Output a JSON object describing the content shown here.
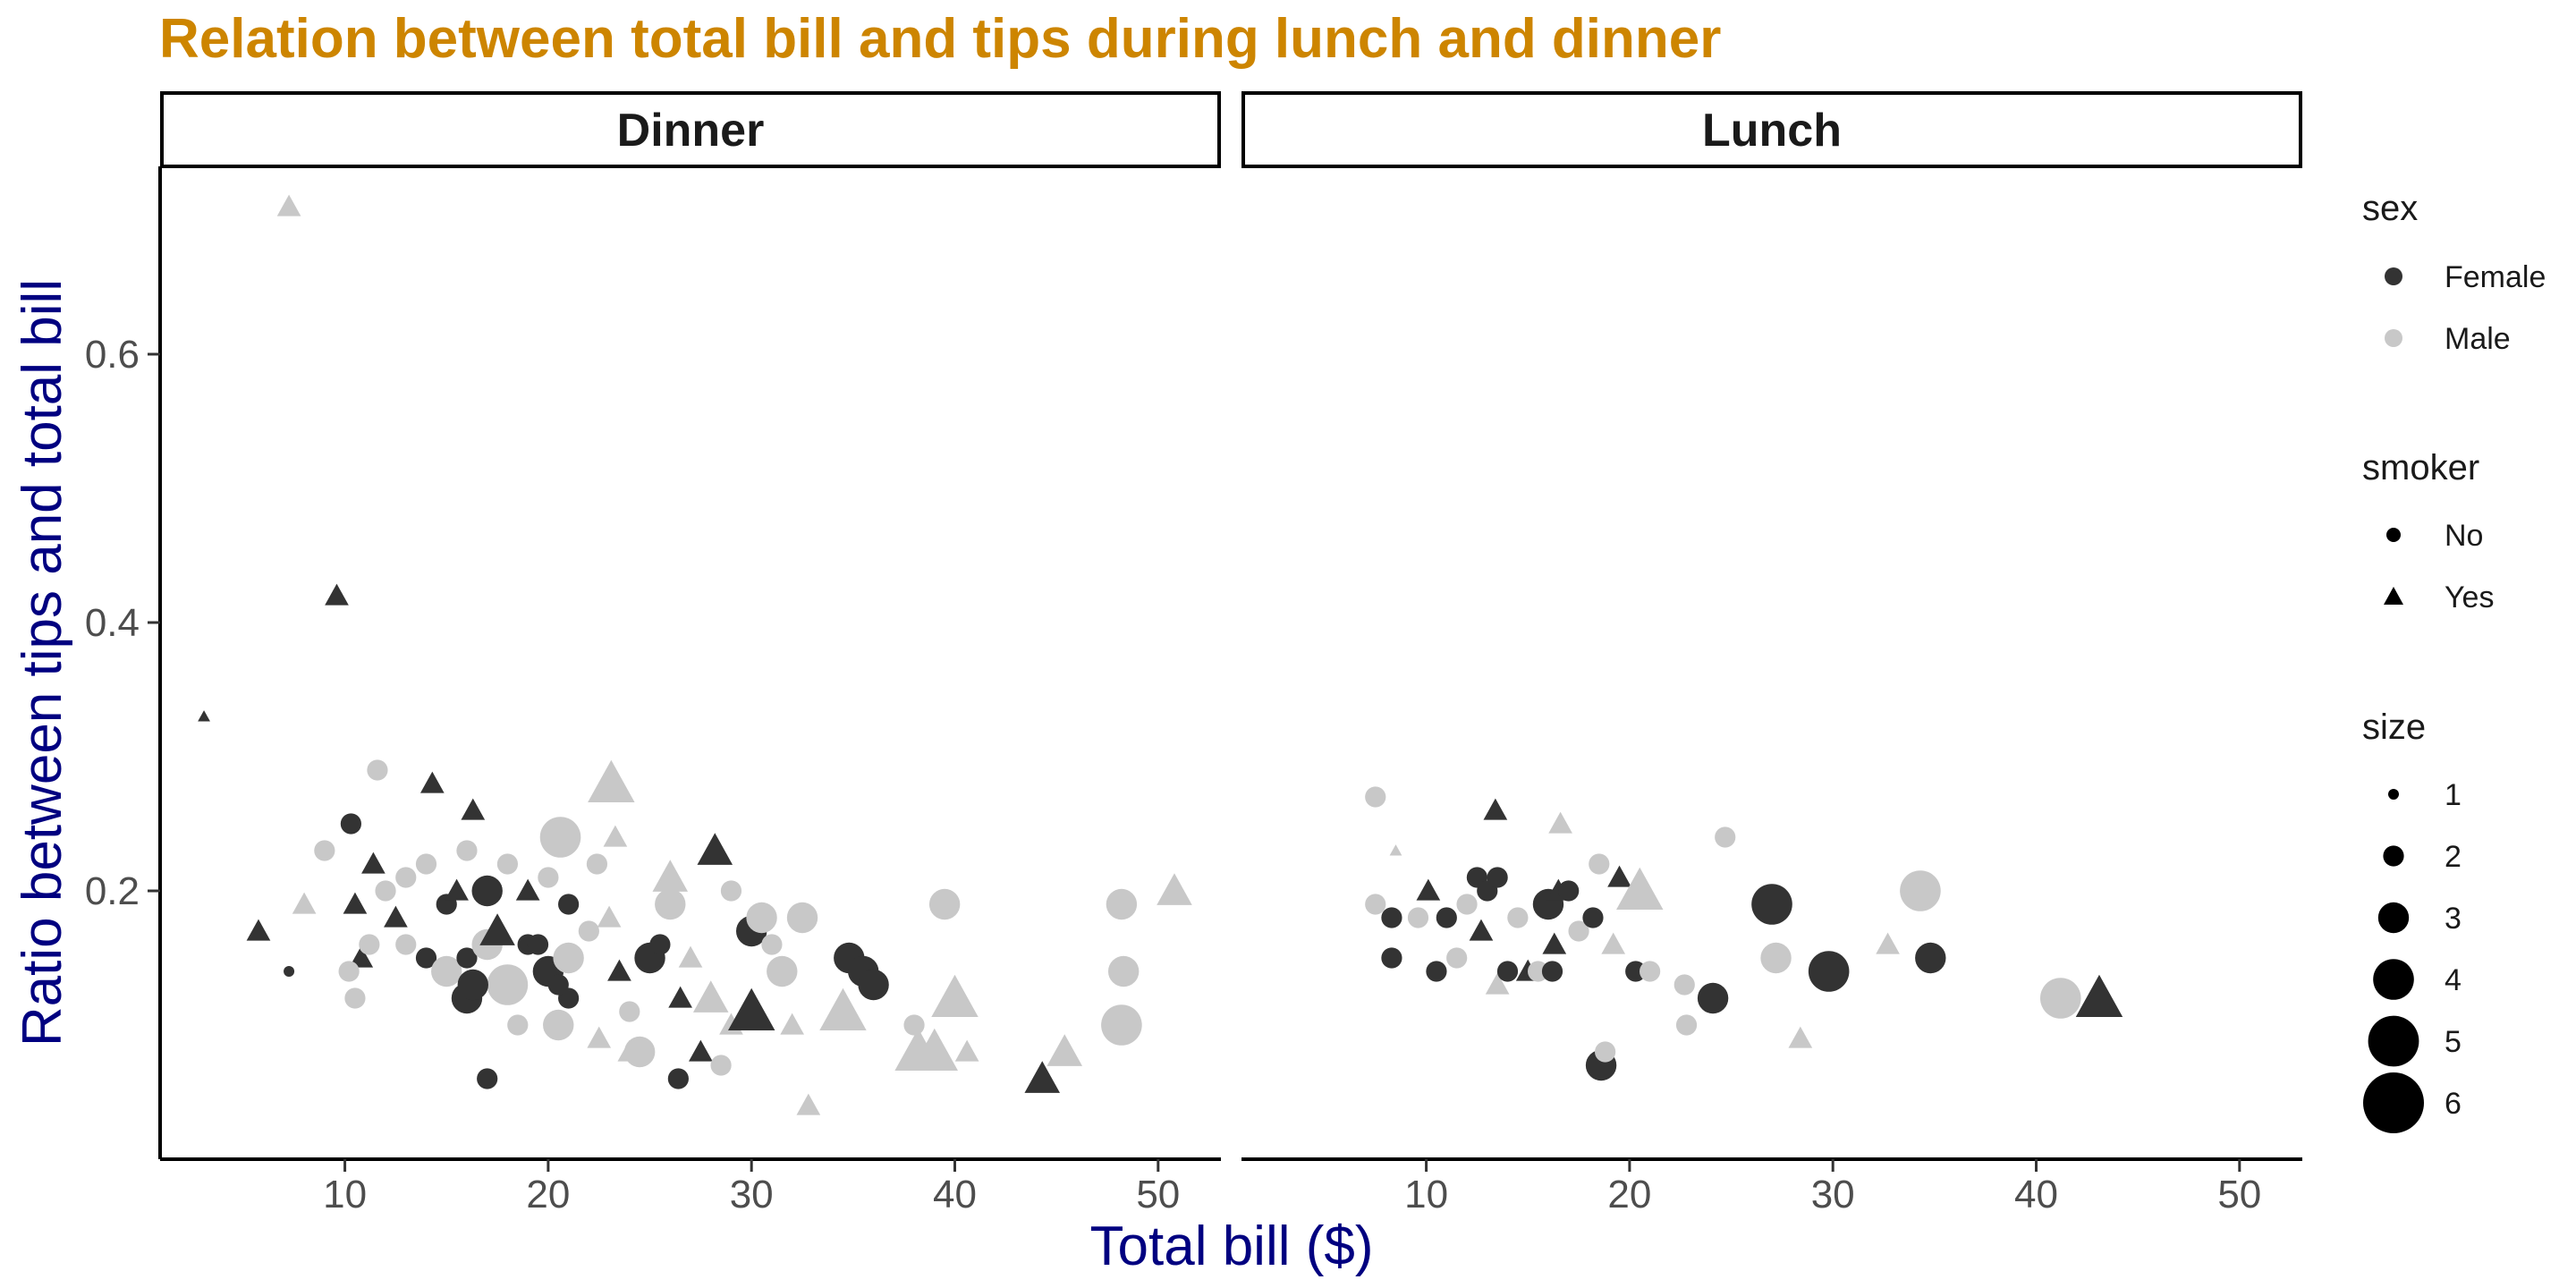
{
  "title": "Relation between total bill and tips during lunch and dinner",
  "colors": {
    "Female": "#333333",
    "Male": "#c8c8c8",
    "title": "#CD8500",
    "axis_title": "#000080"
  },
  "chart_data": {
    "type": "scatter",
    "title": "Relation between total bill and tips during lunch and dinner",
    "xlabel": "Total bill ($)",
    "ylabel": "Ratio between tips and total bill",
    "xlim": [
      1,
      53
    ],
    "ylim": [
      0,
      0.74
    ],
    "x_ticks": [
      10,
      20,
      30,
      40,
      50
    ],
    "y_ticks": [
      0.2,
      0.4,
      0.6
    ],
    "grid": false,
    "facets": [
      "Dinner",
      "Lunch"
    ],
    "legend_position": "right",
    "legends": {
      "sex": {
        "title": "sex",
        "entries": [
          "Female",
          "Male"
        ]
      },
      "smoker": {
        "title": "smoker",
        "entries": [
          "No",
          "Yes"
        ]
      },
      "size": {
        "title": "size",
        "entries": [
          1,
          2,
          3,
          4,
          5,
          6
        ]
      }
    },
    "series": [
      {
        "facet": "Dinner",
        "points": [
          [
            7.25,
            0.71,
            "Male",
            "Yes",
            2
          ],
          [
            3.07,
            0.33,
            "Female",
            "Yes",
            1
          ],
          [
            9.6,
            0.42,
            "Female",
            "Yes",
            2
          ],
          [
            5.75,
            0.17,
            "Female",
            "Yes",
            2
          ],
          [
            7.25,
            0.14,
            "Female",
            "No",
            1
          ],
          [
            8.0,
            0.19,
            "Male",
            "Yes",
            2
          ],
          [
            9.0,
            0.23,
            "Male",
            "No",
            2
          ],
          [
            10.3,
            0.25,
            "Female",
            "No",
            2
          ],
          [
            11.6,
            0.29,
            "Male",
            "No",
            2
          ],
          [
            14.3,
            0.28,
            "Female",
            "Yes",
            2
          ],
          [
            16.3,
            0.26,
            "Female",
            "Yes",
            2
          ],
          [
            23.1,
            0.28,
            "Male",
            "Yes",
            4
          ],
          [
            23.3,
            0.24,
            "Male",
            "Yes",
            2
          ],
          [
            28.2,
            0.23,
            "Female",
            "Yes",
            3
          ],
          [
            20.6,
            0.24,
            "Male",
            "No",
            4
          ],
          [
            22.4,
            0.22,
            "Male",
            "No",
            2
          ],
          [
            11.4,
            0.22,
            "Female",
            "Yes",
            2
          ],
          [
            12.0,
            0.2,
            "Male",
            "No",
            2
          ],
          [
            13.0,
            0.21,
            "Male",
            "No",
            2
          ],
          [
            14.0,
            0.22,
            "Male",
            "No",
            2
          ],
          [
            15.0,
            0.19,
            "Female",
            "No",
            2
          ],
          [
            16.0,
            0.23,
            "Male",
            "No",
            2
          ],
          [
            17.0,
            0.2,
            "Female",
            "No",
            3
          ],
          [
            18.0,
            0.22,
            "Male",
            "No",
            2
          ],
          [
            19.0,
            0.2,
            "Female",
            "Yes",
            2
          ],
          [
            20.0,
            0.21,
            "Male",
            "No",
            2
          ],
          [
            21.0,
            0.19,
            "Female",
            "No",
            2
          ],
          [
            15.5,
            0.2,
            "Female",
            "Yes",
            2
          ],
          [
            10.5,
            0.19,
            "Female",
            "Yes",
            2
          ],
          [
            10.8,
            0.15,
            "Female",
            "Yes",
            2
          ],
          [
            10.2,
            0.14,
            "Male",
            "No",
            2
          ],
          [
            10.5,
            0.12,
            "Male",
            "No",
            2
          ],
          [
            11.2,
            0.16,
            "Male",
            "No",
            2
          ],
          [
            12.5,
            0.18,
            "Female",
            "Yes",
            2
          ],
          [
            13.0,
            0.16,
            "Male",
            "No",
            2
          ],
          [
            14.0,
            0.15,
            "Female",
            "No",
            2
          ],
          [
            15.0,
            0.14,
            "Male",
            "No",
            3
          ],
          [
            16.0,
            0.15,
            "Female",
            "No",
            2
          ],
          [
            16.0,
            0.12,
            "Female",
            "No",
            3
          ],
          [
            17.0,
            0.16,
            "Male",
            "No",
            3
          ],
          [
            18.0,
            0.13,
            "Male",
            "No",
            4
          ],
          [
            18.5,
            0.1,
            "Male",
            "No",
            2
          ],
          [
            19.0,
            0.16,
            "Female",
            "No",
            2
          ],
          [
            20.0,
            0.14,
            "Female",
            "No",
            3
          ],
          [
            20.5,
            0.1,
            "Male",
            "No",
            3
          ],
          [
            21.0,
            0.12,
            "Female",
            "No",
            2
          ],
          [
            21.0,
            0.15,
            "Male",
            "No",
            3
          ],
          [
            22.0,
            0.17,
            "Male",
            "No",
            2
          ],
          [
            22.5,
            0.09,
            "Male",
            "Yes",
            2
          ],
          [
            23.0,
            0.18,
            "Male",
            "Yes",
            2
          ],
          [
            23.5,
            0.14,
            "Female",
            "Yes",
            2
          ],
          [
            24.0,
            0.08,
            "Male",
            "Yes",
            2
          ],
          [
            24.0,
            0.11,
            "Male",
            "No",
            2
          ],
          [
            24.5,
            0.08,
            "Male",
            "No",
            3
          ],
          [
            25.0,
            0.15,
            "Female",
            "No",
            3
          ],
          [
            25.5,
            0.16,
            "Female",
            "No",
            2
          ],
          [
            26.0,
            0.19,
            "Male",
            "No",
            3
          ],
          [
            26.0,
            0.21,
            "Male",
            "Yes",
            3
          ],
          [
            26.5,
            0.12,
            "Female",
            "Yes",
            2
          ],
          [
            26.4,
            0.06,
            "Female",
            "No",
            2
          ],
          [
            27.0,
            0.15,
            "Male",
            "Yes",
            2
          ],
          [
            27.5,
            0.08,
            "Female",
            "Yes",
            2
          ],
          [
            28.0,
            0.12,
            "Male",
            "Yes",
            3
          ],
          [
            28.5,
            0.07,
            "Male",
            "No",
            2
          ],
          [
            29.0,
            0.1,
            "Male",
            "Yes",
            2
          ],
          [
            29.0,
            0.2,
            "Male",
            "No",
            2
          ],
          [
            30.0,
            0.17,
            "Female",
            "No",
            3
          ],
          [
            30.0,
            0.11,
            "Female",
            "Yes",
            4
          ],
          [
            30.5,
            0.18,
            "Male",
            "No",
            3
          ],
          [
            31.0,
            0.16,
            "Male",
            "No",
            2
          ],
          [
            31.5,
            0.14,
            "Male",
            "No",
            3
          ],
          [
            32.0,
            0.1,
            "Male",
            "Yes",
            2
          ],
          [
            32.5,
            0.18,
            "Male",
            "No",
            3
          ],
          [
            32.8,
            0.04,
            "Male",
            "Yes",
            2
          ],
          [
            34.5,
            0.11,
            "Male",
            "Yes",
            4
          ],
          [
            34.8,
            0.15,
            "Female",
            "No",
            3
          ],
          [
            35.5,
            0.14,
            "Female",
            "No",
            3
          ],
          [
            36.0,
            0.13,
            "Female",
            "No",
            3
          ],
          [
            38.0,
            0.1,
            "Male",
            "No",
            2
          ],
          [
            38.2,
            0.08,
            "Male",
            "Yes",
            4
          ],
          [
            39.0,
            0.08,
            "Male",
            "Yes",
            4
          ],
          [
            39.5,
            0.19,
            "Male",
            "No",
            3
          ],
          [
            40.0,
            0.12,
            "Male",
            "Yes",
            4
          ],
          [
            40.6,
            0.08,
            "Male",
            "Yes",
            2
          ],
          [
            44.3,
            0.06,
            "Female",
            "Yes",
            3
          ],
          [
            45.4,
            0.08,
            "Male",
            "Yes",
            3
          ],
          [
            48.2,
            0.19,
            "Male",
            "No",
            3
          ],
          [
            48.3,
            0.14,
            "Male",
            "No",
            3
          ],
          [
            48.2,
            0.1,
            "Male",
            "No",
            4
          ],
          [
            50.8,
            0.2,
            "Male",
            "Yes",
            3
          ],
          [
            17.0,
            0.06,
            "Female",
            "No",
            2
          ],
          [
            17.5,
            0.17,
            "Female",
            "Yes",
            3
          ],
          [
            19.5,
            0.16,
            "Female",
            "No",
            2
          ],
          [
            20.5,
            0.13,
            "Female",
            "No",
            2
          ],
          [
            16.3,
            0.13,
            "Female",
            "No",
            3
          ]
        ]
      },
      {
        "facet": "Lunch",
        "points": [
          [
            7.5,
            0.27,
            "Male",
            "No",
            2
          ],
          [
            7.5,
            0.19,
            "Male",
            "No",
            2
          ],
          [
            8.3,
            0.18,
            "Female",
            "No",
            2
          ],
          [
            8.3,
            0.15,
            "Female",
            "No",
            2
          ],
          [
            8.5,
            0.23,
            "Male",
            "Yes",
            1
          ],
          [
            9.6,
            0.18,
            "Male",
            "No",
            2
          ],
          [
            10.1,
            0.2,
            "Female",
            "Yes",
            2
          ],
          [
            10.5,
            0.14,
            "Female",
            "No",
            2
          ],
          [
            11.0,
            0.18,
            "Female",
            "No",
            2
          ],
          [
            11.5,
            0.15,
            "Male",
            "No",
            2
          ],
          [
            12.0,
            0.19,
            "Male",
            "No",
            2
          ],
          [
            12.5,
            0.21,
            "Female",
            "No",
            2
          ],
          [
            12.7,
            0.17,
            "Female",
            "Yes",
            2
          ],
          [
            13.0,
            0.2,
            "Female",
            "No",
            2
          ],
          [
            13.4,
            0.26,
            "Female",
            "Yes",
            2
          ],
          [
            13.5,
            0.21,
            "Female",
            "No",
            2
          ],
          [
            13.5,
            0.13,
            "Male",
            "Yes",
            2
          ],
          [
            14.0,
            0.14,
            "Female",
            "No",
            2
          ],
          [
            14.5,
            0.18,
            "Male",
            "No",
            2
          ],
          [
            15.0,
            0.14,
            "Female",
            "Yes",
            2
          ],
          [
            15.5,
            0.14,
            "Male",
            "No",
            2
          ],
          [
            16.0,
            0.19,
            "Female",
            "No",
            3
          ],
          [
            16.2,
            0.14,
            "Female",
            "No",
            2
          ],
          [
            16.3,
            0.16,
            "Female",
            "Yes",
            2
          ],
          [
            16.5,
            0.2,
            "Female",
            "Yes",
            2
          ],
          [
            16.6,
            0.25,
            "Male",
            "Yes",
            2
          ],
          [
            17.0,
            0.2,
            "Female",
            "No",
            2
          ],
          [
            17.5,
            0.17,
            "Male",
            "No",
            2
          ],
          [
            18.2,
            0.18,
            "Female",
            "No",
            2
          ],
          [
            18.5,
            0.22,
            "Male",
            "No",
            2
          ],
          [
            18.6,
            0.07,
            "Female",
            "No",
            3
          ],
          [
            18.8,
            0.08,
            "Male",
            "No",
            2
          ],
          [
            19.2,
            0.16,
            "Male",
            "Yes",
            2
          ],
          [
            19.5,
            0.21,
            "Female",
            "Yes",
            2
          ],
          [
            20.3,
            0.14,
            "Female",
            "No",
            2
          ],
          [
            20.5,
            0.2,
            "Male",
            "Yes",
            4
          ],
          [
            21.0,
            0.14,
            "Male",
            "No",
            2
          ],
          [
            22.7,
            0.13,
            "Male",
            "No",
            2
          ],
          [
            22.8,
            0.1,
            "Male",
            "No",
            2
          ],
          [
            24.1,
            0.12,
            "Female",
            "No",
            3
          ],
          [
            24.7,
            0.24,
            "Male",
            "No",
            2
          ],
          [
            27.0,
            0.19,
            "Female",
            "No",
            4
          ],
          [
            27.2,
            0.15,
            "Male",
            "No",
            3
          ],
          [
            28.4,
            0.09,
            "Male",
            "Yes",
            2
          ],
          [
            29.8,
            0.14,
            "Female",
            "No",
            4
          ],
          [
            32.7,
            0.16,
            "Male",
            "Yes",
            2
          ],
          [
            34.3,
            0.2,
            "Male",
            "No",
            4
          ],
          [
            34.8,
            0.15,
            "Female",
            "No",
            3
          ],
          [
            41.2,
            0.12,
            "Male",
            "No",
            4
          ],
          [
            43.1,
            0.12,
            "Female",
            "Yes",
            4
          ]
        ]
      }
    ]
  }
}
